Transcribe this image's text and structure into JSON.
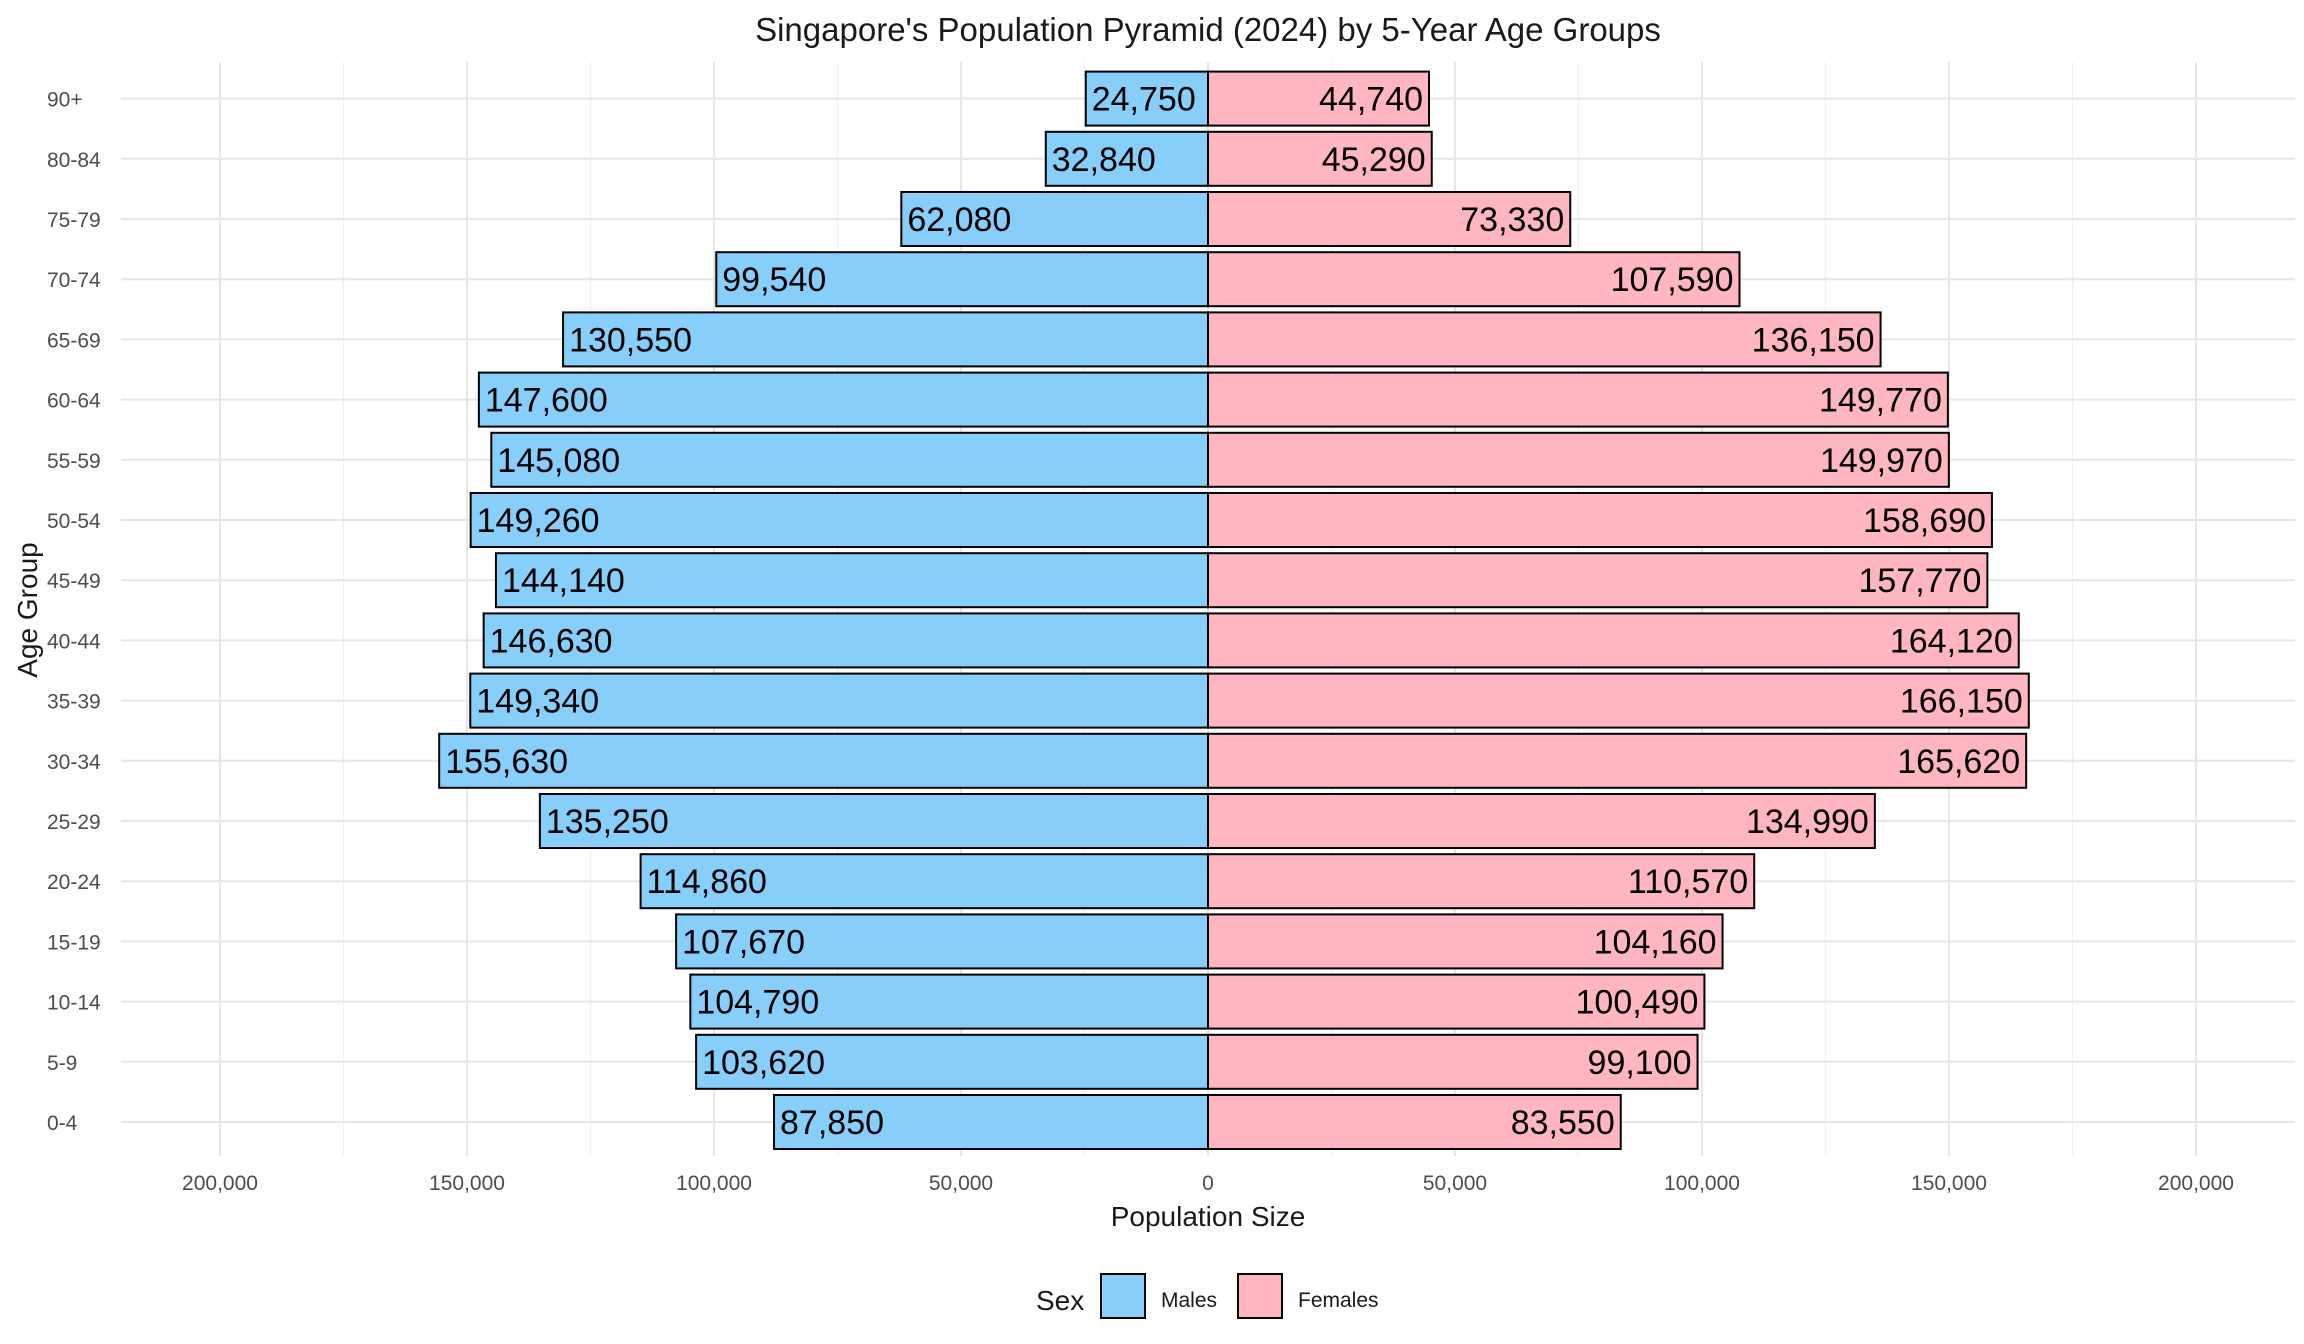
{
  "chart_data": {
    "type": "bar",
    "orientation": "horizontal-diverging",
    "title": "Singapore's Population Pyramid (2024) by 5-Year Age Groups",
    "xlabel": "Population Size",
    "ylabel": "Age Group",
    "xlim": [
      -200000,
      200000
    ],
    "x_ticks": [
      -200000,
      -150000,
      -100000,
      -50000,
      0,
      50000,
      100000,
      150000,
      200000
    ],
    "x_tick_labels": [
      "200,000",
      "150,000",
      "100,000",
      "50,000",
      "0",
      "50,000",
      "100,000",
      "150,000",
      "200,000"
    ],
    "grid": true,
    "legend_position": "bottom",
    "legend_title": "Sex",
    "categories": [
      "0-4",
      "5-9",
      "10-14",
      "15-19",
      "20-24",
      "25-29",
      "30-34",
      "35-39",
      "40-44",
      "45-49",
      "50-54",
      "55-59",
      "60-64",
      "65-69",
      "70-74",
      "75-79",
      "80-84",
      "90+"
    ],
    "series": [
      {
        "name": "Males",
        "side": "left",
        "color": "#87CEFA",
        "values": [
          87850,
          103620,
          104790,
          107670,
          114860,
          135250,
          155630,
          149340,
          146630,
          144140,
          149260,
          145080,
          147600,
          130550,
          99540,
          62080,
          32840,
          24750
        ],
        "labels": [
          "87,850",
          "103,620",
          "104,790",
          "107,670",
          "114,860",
          "135,250",
          "155,630",
          "149,340",
          "146,630",
          "144,140",
          "149,260",
          "145,080",
          "147,600",
          "130,550",
          "99,540",
          "62,080",
          "32,840",
          "24,750"
        ]
      },
      {
        "name": "Females",
        "side": "right",
        "color": "#FFB6C1",
        "values": [
          83550,
          99100,
          100490,
          104160,
          110570,
          134990,
          165620,
          166150,
          164120,
          157770,
          158690,
          149970,
          149770,
          136150,
          107590,
          73330,
          45290,
          44740
        ],
        "labels": [
          "83,550",
          "99,100",
          "100,490",
          "104,160",
          "110,570",
          "134,990",
          "165,620",
          "166,150",
          "164,120",
          "157,770",
          "158,690",
          "149,970",
          "149,770",
          "136,150",
          "107,590",
          "73,330",
          "45,290",
          "44,740"
        ]
      }
    ]
  }
}
